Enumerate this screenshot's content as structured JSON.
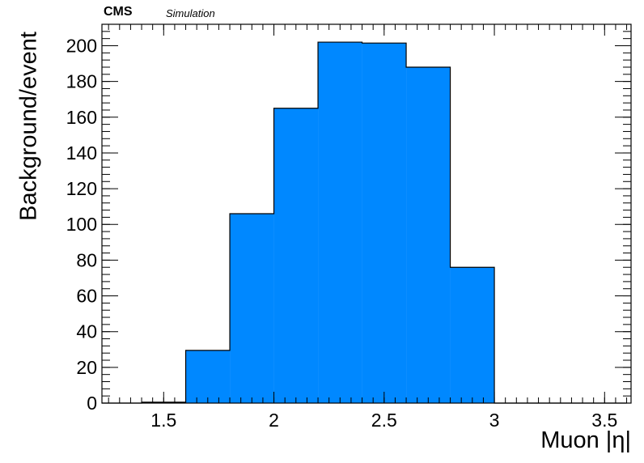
{
  "header": {
    "experiment": "CMS",
    "tag": "Simulation"
  },
  "colors": {
    "fill": "#0088ff",
    "line": "#000000"
  },
  "chart_data": {
    "type": "bar",
    "style": "histogram",
    "xlabel": "Muon |η|",
    "ylabel": "Background/event",
    "xlim": [
      1.22,
      3.62
    ],
    "ylim": [
      0,
      212
    ],
    "bin_edges": [
      1.2,
      1.4,
      1.6,
      1.8,
      2.0,
      2.2,
      2.4,
      2.6,
      2.8,
      3.0,
      3.2,
      3.4,
      3.6
    ],
    "values": [
      0,
      0.5,
      29.5,
      106,
      165,
      202,
      201.5,
      188,
      76,
      0,
      0,
      0
    ],
    "xticks": [
      1.5,
      2,
      2.5,
      3,
      3.5
    ],
    "xtick_labels": [
      "1.5",
      "2",
      "2.5",
      "3",
      "3.5"
    ],
    "yticks": [
      0,
      20,
      40,
      60,
      80,
      100,
      120,
      140,
      160,
      180,
      200
    ],
    "ytick_labels": [
      "0",
      "20",
      "40",
      "60",
      "80",
      "100",
      "120",
      "140",
      "160",
      "180",
      "200"
    ]
  }
}
